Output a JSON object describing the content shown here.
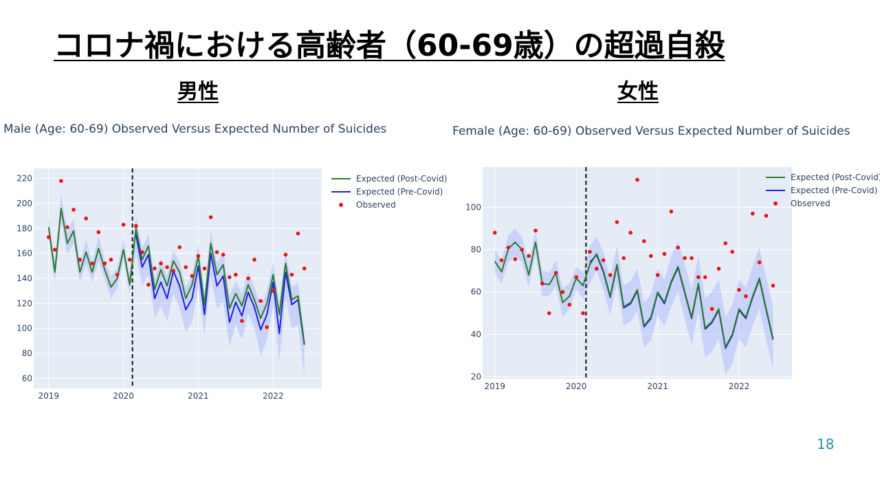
{
  "slide": {
    "title": "コロナ禍における高齢者（60-69歳）の超過自殺",
    "left_heading": "男性",
    "right_heading": "女性",
    "page_number": "18"
  },
  "chart_data": [
    {
      "type": "line",
      "title": "Male (Age: 60-69) Observed Versus Expected Number of Suicides",
      "xlabel": "",
      "ylabel": "",
      "x_ticks": [
        "2019",
        "2020",
        "2021",
        "2022"
      ],
      "y_ticks": [
        "60",
        "80",
        "100",
        "120",
        "140",
        "160",
        "180",
        "200",
        "220"
      ],
      "ylim": [
        52,
        228
      ],
      "xlim": [
        2018.8,
        2022.65
      ],
      "cutoff": 2020.12,
      "legend": [
        "Expected (Post-Covid)",
        "Expected (Pre-Covid)",
        "Observed"
      ],
      "x": [
        2019.0,
        2019.083,
        2019.167,
        2019.25,
        2019.333,
        2019.417,
        2019.5,
        2019.583,
        2019.667,
        2019.75,
        2019.833,
        2019.917,
        2020.0,
        2020.083,
        2020.167,
        2020.25,
        2020.333,
        2020.417,
        2020.5,
        2020.583,
        2020.667,
        2020.75,
        2020.833,
        2020.917,
        2021.0,
        2021.083,
        2021.167,
        2021.25,
        2021.333,
        2021.417,
        2021.5,
        2021.583,
        2021.667,
        2021.75,
        2021.833,
        2021.917,
        2022.0,
        2022.083,
        2022.167,
        2022.25,
        2022.333,
        2022.417
      ],
      "series": [
        {
          "name": "Expected (Post-Covid)",
          "color": "#2a7a2a",
          "values": [
            181,
            145,
            196,
            168,
            178,
            145,
            161,
            145,
            164,
            147,
            133,
            140,
            163,
            135,
            180,
            155,
            166,
            131,
            147,
            134,
            154,
            145,
            124,
            135,
            158,
            119,
            168,
            143,
            151,
            116,
            128,
            118,
            135,
            123,
            108,
            120,
            143,
            111,
            152,
            123,
            126,
            88
          ]
        },
        {
          "name": "Expected (Pre-Covid)",
          "color": "#1f1fdd",
          "values": [
            null,
            null,
            null,
            null,
            null,
            null,
            null,
            null,
            null,
            null,
            null,
            null,
            null,
            null,
            175,
            149,
            159,
            124,
            137,
            124,
            146,
            134,
            115,
            124,
            150,
            111,
            160,
            134,
            142,
            105,
            121,
            110,
            129,
            117,
            99,
            111,
            137,
            96,
            145,
            119,
            123,
            87
          ]
        },
        {
          "name": "Observed",
          "color": "#ee1111",
          "values": [
            173,
            163,
            218,
            181,
            195,
            155,
            188,
            152,
            177,
            152,
            155,
            143,
            183,
            155,
            182,
            161,
            135,
            148,
            152,
            149,
            146,
            165,
            149,
            142,
            158,
            148,
            189,
            161,
            159,
            141,
            143,
            106,
            140,
            155,
            122,
            101,
            130,
            null,
            159,
            143,
            176,
            148
          ]
        }
      ],
      "band": {
        "upper": [
          190,
          153,
          207,
          177,
          188,
          153,
          171,
          153,
          174,
          155,
          142,
          148,
          172,
          142,
          190,
          164,
          175,
          140,
          156,
          142,
          163,
          153,
          133,
          143,
          167,
          128,
          178,
          152,
          162,
          126,
          138,
          128,
          145,
          133,
          118,
          130,
          153,
          120,
          162,
          133,
          137,
          97
        ],
        "lower": [
          172,
          137,
          185,
          159,
          168,
          137,
          151,
          137,
          154,
          139,
          124,
          132,
          154,
          128,
          160,
          134,
          143,
          108,
          118,
          106,
          128,
          116,
          97,
          105,
          133,
          94,
          142,
          116,
          121,
          85,
          103,
          91,
          112,
          100,
          78,
          91,
          118,
          74,
          125,
          100,
          103,
          62
        ]
      }
    },
    {
      "type": "line",
      "title": "Female (Age: 60-69) Observed Versus Expected Number of Suicides",
      "xlabel": "",
      "ylabel": "",
      "x_ticks": [
        "2019",
        "2020",
        "2021",
        "2022"
      ],
      "y_ticks": [
        "20",
        "40",
        "60",
        "80",
        "100"
      ],
      "ylim": [
        19,
        119
      ],
      "xlim": [
        2018.85,
        2022.65
      ],
      "cutoff": 2020.12,
      "legend": [
        "Expected (Post-Covid)",
        "Expected (Pre-Covid)",
        "Observed"
      ],
      "x": [
        2019.0,
        2019.083,
        2019.167,
        2019.25,
        2019.333,
        2019.417,
        2019.5,
        2019.583,
        2019.667,
        2019.75,
        2019.833,
        2019.917,
        2020.0,
        2020.083,
        2020.167,
        2020.25,
        2020.333,
        2020.417,
        2020.5,
        2020.583,
        2020.667,
        2020.75,
        2020.833,
        2020.917,
        2021.0,
        2021.083,
        2021.167,
        2021.25,
        2021.333,
        2021.417,
        2021.5,
        2021.583,
        2021.667,
        2021.75,
        2021.833,
        2021.917,
        2022.0,
        2022.083,
        2022.167,
        2022.25,
        2022.333,
        2022.417
      ],
      "series": [
        {
          "name": "Expected (Post-Covid)",
          "color": "#2a7a2a",
          "values": [
            74.5,
            69.5,
            80.5,
            83.5,
            80,
            68,
            83.5,
            64,
            63.5,
            69,
            55,
            58,
            66.5,
            63,
            73,
            78,
            70,
            58,
            73,
            53,
            55,
            61,
            44,
            48,
            60,
            55,
            65,
            72,
            60,
            48,
            64,
            43,
            46,
            52,
            34,
            40,
            52,
            48,
            58,
            66.5,
            52,
            38
          ]
        },
        {
          "name": "Expected (Pre-Covid)",
          "color": "#1f1fdd",
          "values": [
            null,
            null,
            null,
            null,
            null,
            null,
            null,
            null,
            null,
            null,
            null,
            null,
            null,
            null,
            74,
            77.5,
            69.5,
            57.5,
            72.5,
            52.5,
            54.5,
            60.5,
            43.5,
            47.5,
            59.5,
            54.5,
            64.5,
            71.5,
            59.5,
            47.5,
            63.5,
            42.5,
            45.5,
            51.5,
            33.5,
            39.5,
            51.5,
            47.5,
            57.5,
            66,
            51.5,
            37.5
          ]
        },
        {
          "name": "Observed",
          "color": "#ee1111",
          "values": [
            88,
            75,
            81,
            75.5,
            80,
            77,
            89,
            64,
            50,
            69,
            60,
            54,
            67,
            50,
            79,
            71,
            75,
            68,
            93,
            76,
            88,
            113,
            84,
            77,
            68,
            78,
            98,
            81,
            76,
            76,
            67,
            67,
            52,
            71,
            83,
            79,
            61,
            58,
            97,
            74,
            96,
            63
          ]
        }
      ],
      "band": {
        "upper": [
          80,
          75,
          87,
          90,
          86,
          74,
          89,
          70,
          69,
          75,
          62,
          64,
          72,
          69,
          82,
          86,
          79,
          67,
          82,
          63,
          65,
          71,
          55,
          59,
          71,
          66,
          77,
          84,
          73,
          61,
          77,
          57,
          60,
          66,
          48,
          54,
          66,
          62,
          72,
          81,
          67,
          53
        ],
        "lower": [
          69,
          64,
          74,
          77,
          74,
          62,
          78,
          58,
          58,
          63,
          48,
          52,
          61,
          57,
          64,
          70,
          61,
          49,
          64,
          44,
          46,
          51,
          34,
          37,
          49,
          44,
          53,
          60,
          47,
          35,
          51,
          29,
          32,
          38,
          21,
          26,
          38,
          34,
          44,
          52,
          37,
          24
        ]
      }
    }
  ]
}
